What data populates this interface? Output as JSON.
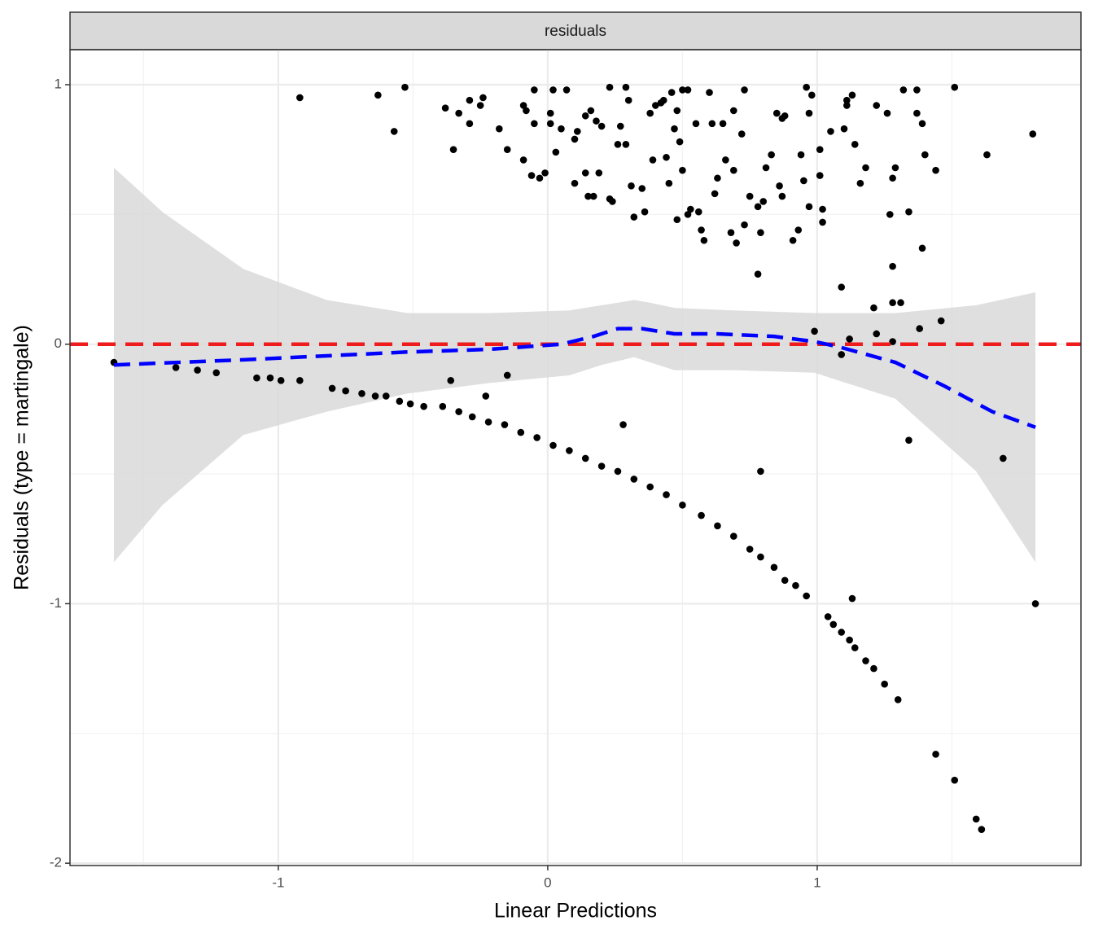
{
  "chart_data": {
    "type": "scatter",
    "facet_label": "residuals",
    "x_label": "Linear Predictions",
    "y_label": "Residuals (type = martingale)",
    "xlim": [
      -1.773,
      1.979
    ],
    "ylim": [
      -2.009,
      1.135
    ],
    "xticks": [
      -1,
      0,
      1
    ],
    "yticks": [
      -2,
      -1,
      0,
      1
    ],
    "xminor": [
      -1.5,
      -0.5,
      0.5,
      1.5
    ],
    "yminor": [
      -1.5,
      -0.5,
      0.5
    ],
    "grid": true,
    "points": {
      "color": "#000000",
      "x": [
        -1.61,
        -1.38,
        -1.3,
        -1.23,
        -1.08,
        -1.03,
        -0.99,
        -0.92,
        -0.8,
        -0.75,
        -0.69,
        -0.64,
        -0.6,
        -0.55,
        -0.51,
        -0.46,
        -0.39,
        -0.36,
        -0.33,
        -0.28,
        -0.23,
        -0.22,
        -0.15,
        -0.16,
        -0.1,
        -0.04,
        0.02,
        0.08,
        0.14,
        0.2,
        0.28,
        0.26,
        0.32,
        0.38,
        0.44,
        0.5,
        0.57,
        0.63,
        0.69,
        0.75,
        0.79,
        0.79,
        0.84,
        0.88,
        0.92,
        0.96,
        1.04,
        1.06,
        1.09,
        1.12,
        1.13,
        1.14,
        1.18,
        1.21,
        1.25,
        1.3,
        1.34,
        1.44,
        1.51,
        1.59,
        1.61,
        1.69,
        1.81,
        0.99,
        1.09,
        1.12,
        1.22,
        1.28,
        1.38,
        1.46,
        1.21,
        1.28,
        1.31,
        1.28,
        1.09,
        -0.92,
        -0.63,
        -0.53,
        -0.57,
        -0.38,
        -0.35,
        -0.33,
        -0.29,
        -0.29,
        -0.24,
        -0.25,
        -0.18,
        -0.15,
        -0.09,
        -0.09,
        -0.08,
        -0.06,
        -0.05,
        -0.05,
        -0.03,
        -0.01,
        0.01,
        0.02,
        0.01,
        0.03,
        0.05,
        0.07,
        0.1,
        0.1,
        0.11,
        0.14,
        0.14,
        0.15,
        0.16,
        0.17,
        0.18,
        0.19,
        0.2,
        0.23,
        0.23,
        0.24,
        0.26,
        0.27,
        0.29,
        0.3,
        0.29,
        0.31,
        0.32,
        0.35,
        0.36,
        0.38,
        0.39,
        0.4,
        0.42,
        0.43,
        0.44,
        0.45,
        0.46,
        0.47,
        0.48,
        0.48,
        0.49,
        0.5,
        0.5,
        0.52,
        0.52,
        0.53,
        0.55,
        0.56,
        0.57,
        0.58,
        0.6,
        0.61,
        0.62,
        0.63,
        0.65,
        0.66,
        0.68,
        0.69,
        0.69,
        0.7,
        0.72,
        0.73,
        0.73,
        0.75,
        0.78,
        0.78,
        0.79,
        0.8,
        0.81,
        0.83,
        0.85,
        0.86,
        0.87,
        0.87,
        0.88,
        0.91,
        0.93,
        0.94,
        0.95,
        0.96,
        0.97,
        0.98,
        0.97,
        1.01,
        1.01,
        1.02,
        1.02,
        1.05,
        1.1,
        1.11,
        1.11,
        1.13,
        1.14,
        1.16,
        1.18,
        1.22,
        1.26,
        1.28,
        1.27,
        1.29,
        1.32,
        1.34,
        1.37,
        1.37,
        1.39,
        1.39,
        1.4,
        1.44,
        1.51,
        1.63,
        1.8
      ],
      "y": [
        -0.07,
        -0.09,
        -0.1,
        -0.11,
        -0.13,
        -0.13,
        -0.14,
        -0.14,
        -0.17,
        -0.18,
        -0.19,
        -0.2,
        -0.2,
        -0.22,
        -0.23,
        -0.24,
        -0.24,
        -0.14,
        -0.26,
        -0.28,
        -0.2,
        -0.3,
        -0.12,
        -0.31,
        -0.34,
        -0.36,
        -0.39,
        -0.41,
        -0.44,
        -0.47,
        -0.31,
        -0.49,
        -0.52,
        -0.55,
        -0.58,
        -0.62,
        -0.66,
        -0.7,
        -0.74,
        -0.79,
        -0.49,
        -0.82,
        -0.86,
        -0.91,
        -0.93,
        -0.97,
        -1.05,
        -1.08,
        -1.11,
        -1.14,
        -0.98,
        -1.17,
        -1.22,
        -1.25,
        -1.31,
        -1.37,
        -0.37,
        -1.58,
        -1.68,
        -1.83,
        -1.87,
        -0.44,
        -1.0,
        0.05,
        -0.04,
        0.02,
        0.04,
        0.01,
        0.06,
        0.09,
        0.14,
        0.16,
        0.16,
        0.3,
        0.22,
        0.95,
        0.96,
        0.99,
        0.82,
        0.91,
        0.75,
        0.89,
        0.94,
        0.85,
        0.95,
        0.92,
        0.83,
        0.75,
        0.92,
        0.71,
        0.9,
        0.65,
        0.85,
        0.98,
        0.64,
        0.66,
        0.89,
        0.98,
        0.85,
        0.74,
        0.83,
        0.98,
        0.62,
        0.79,
        0.82,
        0.66,
        0.88,
        0.57,
        0.9,
        0.57,
        0.86,
        0.66,
        0.84,
        0.99,
        0.56,
        0.55,
        0.77,
        0.84,
        0.99,
        0.94,
        0.77,
        0.61,
        0.49,
        0.6,
        0.51,
        0.89,
        0.71,
        0.92,
        0.93,
        0.94,
        0.72,
        0.62,
        0.97,
        0.83,
        0.9,
        0.48,
        0.78,
        0.98,
        0.67,
        0.98,
        0.5,
        0.52,
        0.85,
        0.51,
        0.44,
        0.4,
        0.97,
        0.85,
        0.58,
        0.64,
        0.85,
        0.71,
        0.43,
        0.67,
        0.9,
        0.39,
        0.81,
        0.98,
        0.46,
        0.57,
        0.53,
        0.27,
        0.43,
        0.55,
        0.68,
        0.73,
        0.89,
        0.61,
        0.87,
        0.57,
        0.88,
        0.4,
        0.44,
        0.73,
        0.63,
        0.99,
        0.53,
        0.96,
        0.89,
        0.75,
        0.65,
        0.52,
        0.47,
        0.82,
        0.83,
        0.92,
        0.94,
        0.96,
        0.77,
        0.62,
        0.68,
        0.92,
        0.89,
        0.64,
        0.5,
        0.68,
        0.98,
        0.51,
        0.98,
        0.89,
        0.85,
        0.37,
        0.73,
        0.67,
        0.99,
        0.73,
        0.81
      ]
    },
    "smooth": {
      "color": "#0000ff",
      "x": [
        -1.61,
        -1.13,
        -0.52,
        -0.22,
        0.05,
        0.17,
        0.26,
        0.35,
        0.47,
        0.63,
        0.84,
        0.99,
        1.08,
        1.29,
        1.47,
        1.65,
        1.81
      ],
      "y": [
        -0.08,
        -0.06,
        -0.03,
        -0.02,
        0.0,
        0.03,
        0.06,
        0.06,
        0.04,
        0.04,
        0.03,
        0.01,
        -0.01,
        -0.07,
        -0.16,
        -0.26,
        -0.32
      ]
    },
    "band": {
      "color": "#d9d9d9",
      "x": [
        -1.61,
        -1.43,
        -1.13,
        -0.82,
        -0.52,
        -0.22,
        0.08,
        0.2,
        0.32,
        0.38,
        0.47,
        0.69,
        0.99,
        1.29,
        1.59,
        1.81
      ],
      "upper": [
        0.68,
        0.51,
        0.29,
        0.17,
        0.12,
        0.12,
        0.13,
        0.15,
        0.17,
        0.16,
        0.14,
        0.13,
        0.12,
        0.12,
        0.15,
        0.2
      ],
      "lower": [
        -0.84,
        -0.62,
        -0.35,
        -0.26,
        -0.19,
        -0.15,
        -0.12,
        -0.08,
        -0.05,
        -0.07,
        -0.1,
        -0.1,
        -0.11,
        -0.21,
        -0.49,
        -0.84
      ]
    },
    "hline": {
      "value": 0,
      "color": "#ee1c1c"
    }
  }
}
